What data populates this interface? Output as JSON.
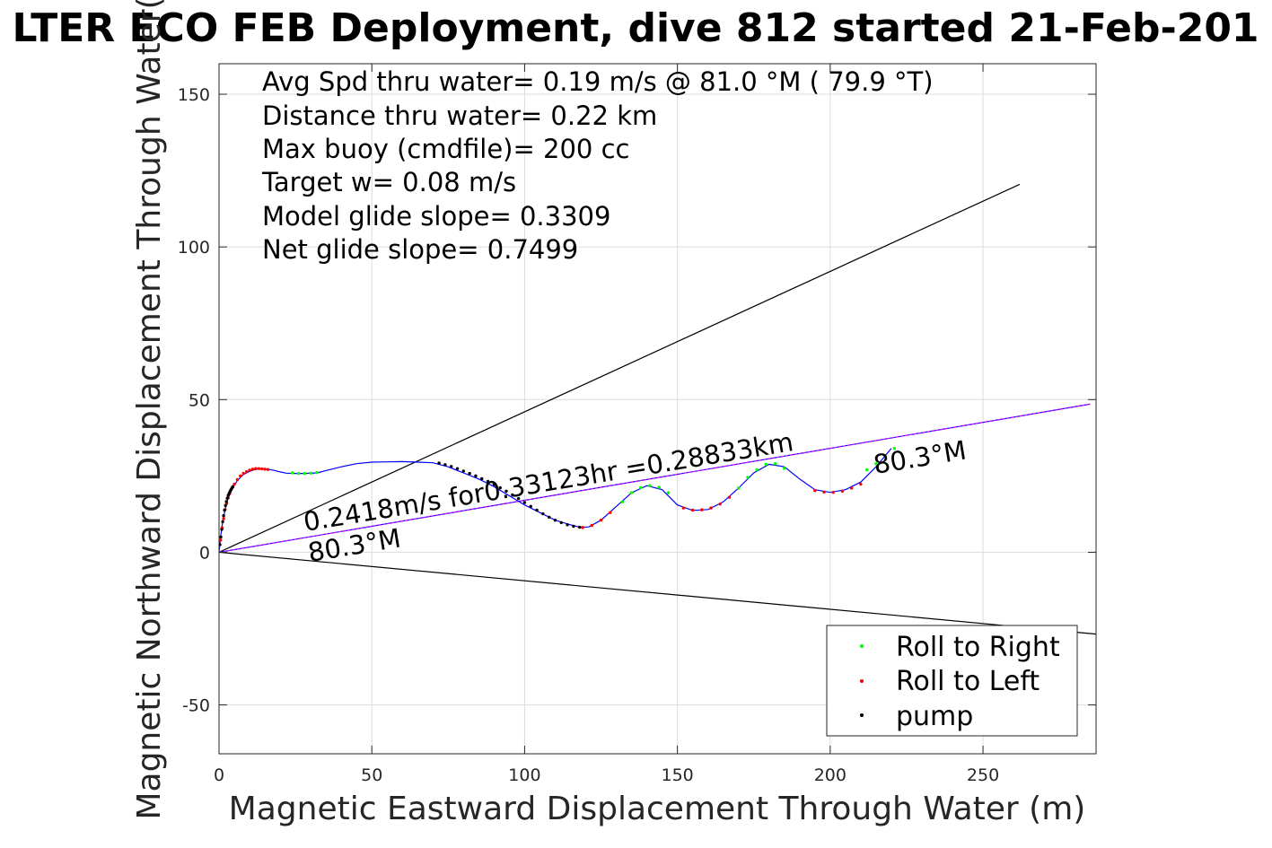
{
  "chart_data": {
    "type": "scatter",
    "title": "LTER ECO FEB Deployment, dive 812 started 21-Feb-201",
    "xlabel": "Magnetic Eastward Displacement Through Water (m)",
    "ylabel": "Magnetic Northward Displacement Through Water(",
    "xlim": [
      0,
      287
    ],
    "ylim": [
      -66,
      160
    ],
    "xticks": [
      0,
      50,
      100,
      150,
      200,
      250
    ],
    "xtick_labels": [
      "0",
      "50",
      "100",
      "150",
      "200",
      "250"
    ],
    "yticks": [
      -50,
      0,
      50,
      100,
      150
    ],
    "ytick_labels": [
      "-50",
      "0",
      "50",
      "100",
      "150"
    ],
    "grid": true,
    "stats": [
      "Avg Spd thru water=  0.19 m/s @  81.0 °M ( 79.9 °T)",
      "Distance thru water=  0.22 km",
      "Max buoy (cmdfile)= 200 cc",
      "Target w= 0.08 m/s",
      "Model glide slope= 0.3309",
      "Net glide slope= 0.7499"
    ],
    "annotations": {
      "speed_label": "0.2418m/s for0.33123hr =0.28833km",
      "heading_start": "80.3°M",
      "heading_end": "80.3°M"
    },
    "lines": [
      {
        "role": "cone-upper",
        "color": "#000000",
        "x": [
          0,
          262
        ],
        "y": [
          0,
          120.5
        ]
      },
      {
        "role": "cone-lower",
        "color": "#000000",
        "x": [
          0,
          287
        ],
        "y": [
          0,
          -26.8
        ]
      },
      {
        "role": "net-heading",
        "color": "#0000ff",
        "x": [
          0,
          285
        ],
        "y": [
          0,
          48.5
        ]
      },
      {
        "role": "avg-heading",
        "color": "#ff00ff",
        "x": [
          0,
          285
        ],
        "y": [
          0,
          48.5
        ]
      }
    ],
    "track": {
      "color": "#0000ff",
      "x": [
        0,
        0.5,
        1.2,
        2,
        3,
        4.5,
        6,
        8,
        10,
        12,
        14,
        16,
        18,
        20,
        22,
        25,
        28,
        32,
        36,
        40,
        45,
        50,
        55,
        60,
        65,
        70,
        75,
        80,
        85,
        90,
        95,
        100,
        105,
        110,
        115,
        118,
        121,
        125,
        130,
        135,
        140,
        145,
        150,
        155,
        160,
        165,
        170,
        175,
        180,
        185,
        190,
        195,
        200,
        205,
        210,
        215,
        220
      ],
      "y": [
        0,
        5,
        10,
        14,
        18,
        21,
        23.5,
        25.5,
        26.5,
        27.2,
        27.4,
        27.2,
        26.8,
        26.3,
        25.9,
        25.8,
        25.8,
        26,
        27,
        28,
        29,
        29.5,
        29.6,
        29.7,
        29.5,
        29.3,
        28,
        26,
        24,
        21.5,
        18.5,
        15.5,
        13,
        10.5,
        9,
        8.2,
        8.3,
        10.5,
        15,
        19.5,
        21.8,
        20.5,
        15.5,
        13.7,
        14,
        16.5,
        21,
        26,
        28.8,
        28,
        24,
        20.5,
        19.6,
        20.5,
        23,
        28,
        34
      ]
    },
    "series": [
      {
        "name": "Roll to Right",
        "color": "#00ff00",
        "x": [
          24,
          26,
          28,
          30,
          32,
          132,
          135,
          138,
          141,
          144,
          147,
          170,
          173,
          176,
          179,
          182,
          185,
          212,
          215,
          218,
          221
        ],
        "y": [
          26,
          25.8,
          25.8,
          25.9,
          26.1,
          16.5,
          19.5,
          21.2,
          21.8,
          21.3,
          19.5,
          21,
          24.5,
          27,
          28.8,
          29,
          27.5,
          27,
          29,
          31.5,
          34
        ]
      },
      {
        "name": "Roll to Left",
        "color": "#ff0000",
        "x": [
          0.5,
          1,
          1.5,
          2,
          2.5,
          3,
          3.5,
          4,
          4.5,
          5,
          6,
          7,
          8,
          9,
          10,
          11,
          12,
          13,
          14,
          15,
          16,
          119,
          122,
          125,
          128,
          152,
          155,
          158,
          161,
          164,
          167,
          195,
          198,
          201,
          204,
          207,
          210
        ],
        "y": [
          4,
          8,
          11,
          14,
          16,
          17.8,
          19.2,
          20.5,
          21.5,
          22.3,
          23.8,
          25,
          25.8,
          26.4,
          26.9,
          27.2,
          27.4,
          27.4,
          27.3,
          27.2,
          27.1,
          8.1,
          8.8,
          10.5,
          13,
          14.5,
          13.8,
          13.9,
          14.5,
          15.8,
          18,
          20.2,
          19.7,
          19.6,
          20,
          21,
          22.3
        ]
      },
      {
        "name": "pump",
        "color": "#000000",
        "x": [
          0.3,
          0.6,
          0.9,
          1.2,
          1.5,
          1.8,
          2.1,
          2.4,
          2.7,
          3,
          3.3,
          3.6,
          3.9,
          4.2,
          4.5,
          72,
          74,
          76,
          78,
          80,
          82,
          84,
          86,
          88,
          90,
          92,
          94,
          96,
          98,
          100,
          102,
          104,
          106,
          108,
          110,
          112,
          114,
          116,
          118
        ],
        "y": [
          2.5,
          5,
          7.5,
          10,
          12,
          13.8,
          15.3,
          16.6,
          17.7,
          18.6,
          19.3,
          19.9,
          20.5,
          21,
          21.4,
          29.2,
          28.7,
          28.1,
          27.4,
          26.6,
          25.8,
          25,
          24.1,
          23.2,
          22.2,
          21.1,
          20,
          18.8,
          17.6,
          16.3,
          15,
          13.8,
          12.6,
          11.5,
          10.5,
          9.7,
          9,
          8.5,
          8.2
        ]
      }
    ],
    "legend": {
      "placement": "bottom-right",
      "entries": [
        "Roll to Right",
        "Roll to Left",
        "pump"
      ]
    }
  }
}
